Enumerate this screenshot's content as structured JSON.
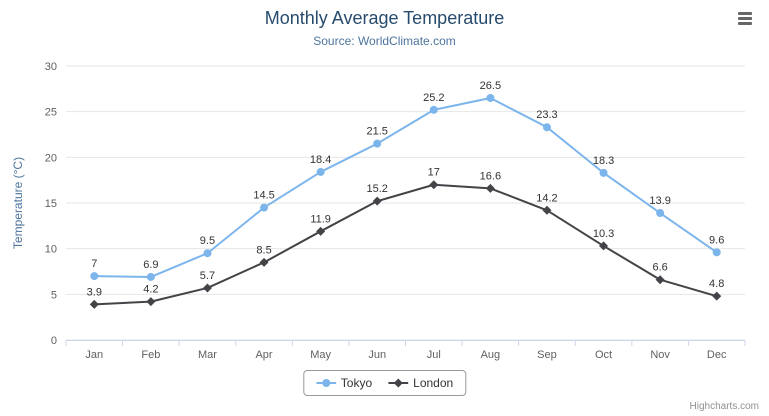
{
  "credits": "Highcharts.com",
  "icons": {
    "context_menu": "hamburger-menu-icon"
  },
  "chart_data": {
    "type": "line",
    "title": "Monthly Average Temperature",
    "subtitle": "Source: WorldClimate.com",
    "categories": [
      "Jan",
      "Feb",
      "Mar",
      "Apr",
      "May",
      "Jun",
      "Jul",
      "Aug",
      "Sep",
      "Oct",
      "Nov",
      "Dec"
    ],
    "series": [
      {
        "name": "Tokyo",
        "color": "#7cb5ec",
        "marker": "circle",
        "values": [
          7,
          6.9,
          9.5,
          14.5,
          18.4,
          21.5,
          25.2,
          26.5,
          23.3,
          18.3,
          13.9,
          9.6
        ]
      },
      {
        "name": "London",
        "color": "#434348",
        "marker": "diamond",
        "values": [
          3.9,
          4.2,
          5.7,
          8.5,
          11.9,
          15.2,
          17,
          16.6,
          14.2,
          10.3,
          6.6,
          4.8
        ]
      }
    ],
    "xlabel": "",
    "ylabel": "Temperature (°C)",
    "ylim": [
      0,
      30
    ],
    "yticks": [
      0,
      5,
      10,
      15,
      20,
      25,
      30
    ],
    "grid": true,
    "data_labels": true,
    "legend_position": "bottom",
    "colors": {
      "grid_line": "#e6e6e6",
      "axis_line": "#ccd6eb",
      "tick_label": "#606060",
      "data_label": "#333333",
      "title": "#274b6d",
      "subtitle": "#4d759e",
      "axis_title": "#4d759e"
    }
  }
}
